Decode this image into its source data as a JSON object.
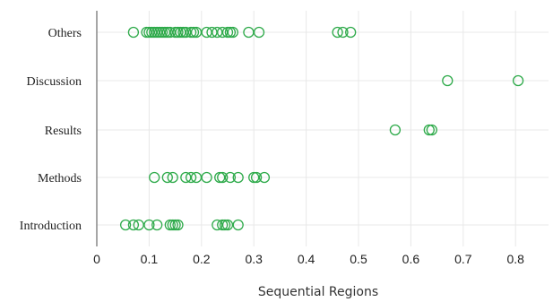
{
  "chart_data": {
    "type": "scatter",
    "xlabel": "Sequential Regions",
    "ylabel": "",
    "xlim": [
      0,
      0.86
    ],
    "x_ticks": [
      0,
      0.1,
      0.2,
      0.3,
      0.4,
      0.5,
      0.6,
      0.7,
      0.8
    ],
    "x_tick_labels": [
      "0",
      "0.1",
      "0.2",
      "0.3",
      "0.4",
      "0.5",
      "0.6",
      "0.7",
      "0.8"
    ],
    "grid": true,
    "marker": "open-circle",
    "categories": [
      "Introduction",
      "Methods",
      "Results",
      "Discussion",
      "Others"
    ],
    "series": [
      {
        "category": "Others",
        "x": [
          0.07,
          0.095,
          0.1,
          0.105,
          0.11,
          0.115,
          0.12,
          0.125,
          0.13,
          0.135,
          0.14,
          0.15,
          0.155,
          0.16,
          0.165,
          0.17,
          0.18,
          0.185,
          0.19,
          0.21,
          0.22,
          0.23,
          0.24,
          0.25,
          0.255,
          0.26,
          0.29,
          0.31,
          0.46,
          0.47,
          0.485
        ]
      },
      {
        "category": "Discussion",
        "x": [
          0.67,
          0.805
        ]
      },
      {
        "category": "Results",
        "x": [
          0.57,
          0.635,
          0.64
        ]
      },
      {
        "category": "Methods",
        "x": [
          0.11,
          0.135,
          0.145,
          0.17,
          0.18,
          0.19,
          0.21,
          0.235,
          0.24,
          0.255,
          0.27,
          0.3,
          0.305,
          0.32
        ]
      },
      {
        "category": "Introduction",
        "x": [
          0.055,
          0.07,
          0.08,
          0.1,
          0.115,
          0.14,
          0.145,
          0.15,
          0.155,
          0.23,
          0.24,
          0.245,
          0.25,
          0.27
        ]
      }
    ],
    "colors": {
      "marker": "#2eaa4a",
      "axis": "#888888",
      "grid": "#e8e8e8",
      "text": "#222222"
    }
  }
}
